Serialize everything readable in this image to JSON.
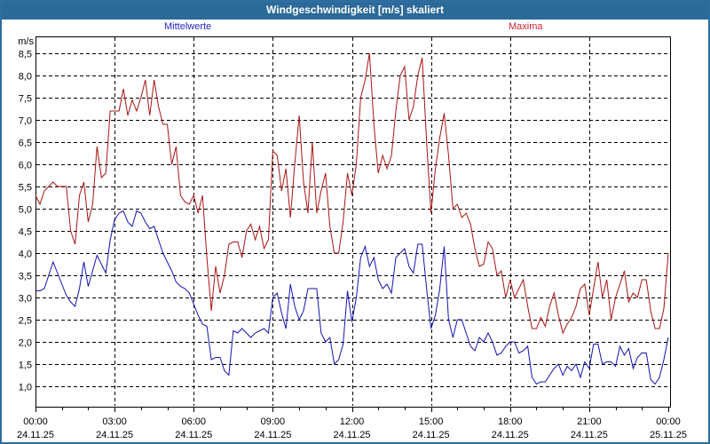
{
  "window": {
    "title": "Windgeschwindigkeit [m/s] skaliert"
  },
  "legend": {
    "mean_label": "Mittelwerte",
    "max_label": "Maxima"
  },
  "colors": {
    "titlebar_bg": "#2d6e9e",
    "titlebar_text": "#ffffff",
    "frame_border": "#2d6e9e",
    "legend_mean_text": "#2424cc",
    "legend_max_text": "#cc2233",
    "line_mean": "#1414b2",
    "line_max": "#a81414",
    "grid": "#000000",
    "plot_bg": "#ffffff"
  },
  "chart_data": {
    "type": "line",
    "title": "Windgeschwindigkeit [m/s] skaliert",
    "ylabel": "m/s",
    "ylim": [
      1.0,
      8.5
    ],
    "y_tick_step": 0.5,
    "y_tick_labels": [
      "8,5",
      "8,0",
      "7,5",
      "7,0",
      "6,5",
      "6,0",
      "5,5",
      "5,0",
      "4,5",
      "4,0",
      "3,5",
      "3,0",
      "2,5",
      "2,0",
      "1,5",
      "1,0"
    ],
    "grid": "dashed",
    "x_start_hour": 0,
    "x_end_hour": 24,
    "x_major_tick_hours": 3,
    "x_minor_tick_hours": 1,
    "interval_minutes": 10,
    "x_tick_labels": [
      {
        "time": "00:00",
        "date": "24.11.25"
      },
      {
        "time": "03:00",
        "date": "24.11.25"
      },
      {
        "time": "06:00",
        "date": "24.11.25"
      },
      {
        "time": "09:00",
        "date": "24.11.25"
      },
      {
        "time": "12:00",
        "date": "24.11.25"
      },
      {
        "time": "15:00",
        "date": "24.11.25"
      },
      {
        "time": "18:00",
        "date": "24.11.25"
      },
      {
        "time": "21:00",
        "date": "24.11.25"
      },
      {
        "time": "00:00",
        "date": "25.11.25"
      }
    ],
    "series": [
      {
        "name": "Mittelwerte",
        "color": "#1414b2",
        "values": [
          3.15,
          3.15,
          3.2,
          3.5,
          3.8,
          3.55,
          3.3,
          3.05,
          2.9,
          2.8,
          3.2,
          3.8,
          3.25,
          3.6,
          3.95,
          3.75,
          3.55,
          4.3,
          4.75,
          4.9,
          4.95,
          4.7,
          4.6,
          4.95,
          4.9,
          4.7,
          4.55,
          4.6,
          4.3,
          4.0,
          3.8,
          3.6,
          3.35,
          3.25,
          3.2,
          3.1,
          2.85,
          2.6,
          2.4,
          2.35,
          1.6,
          1.65,
          1.65,
          1.35,
          1.25,
          2.25,
          2.2,
          2.3,
          2.2,
          2.1,
          2.2,
          2.25,
          2.3,
          2.2,
          3.0,
          3.1,
          2.65,
          2.3,
          3.3,
          2.8,
          2.5,
          2.7,
          3.2,
          3.2,
          3.2,
          2.2,
          2.0,
          2.1,
          1.5,
          1.6,
          1.95,
          3.15,
          2.45,
          3.0,
          3.9,
          4.15,
          3.7,
          3.9,
          3.4,
          3.2,
          3.3,
          3.1,
          3.9,
          4.0,
          4.1,
          3.7,
          3.55,
          4.2,
          4.2,
          3.2,
          2.3,
          2.6,
          3.2,
          4.15,
          2.5,
          2.1,
          2.5,
          2.5,
          2.2,
          1.9,
          1.8,
          2.1,
          2.0,
          2.2,
          2.0,
          1.7,
          1.75,
          1.9,
          2.0,
          2.0,
          1.75,
          1.8,
          1.9,
          1.2,
          1.05,
          1.1,
          1.1,
          1.25,
          1.4,
          1.5,
          1.25,
          1.45,
          1.35,
          1.5,
          1.2,
          1.55,
          1.4,
          1.95,
          1.95,
          1.5,
          1.55,
          1.55,
          1.45,
          1.9,
          1.7,
          1.85,
          1.4,
          1.65,
          1.75,
          1.75,
          1.15,
          1.05,
          1.2,
          1.6,
          2.1
        ]
      },
      {
        "name": "Maxima",
        "color": "#a81414",
        "values": [
          5.3,
          5.1,
          5.4,
          5.5,
          5.6,
          5.5,
          5.5,
          5.5,
          4.5,
          4.2,
          5.3,
          5.6,
          4.7,
          5.1,
          6.4,
          5.7,
          5.8,
          7.2,
          7.2,
          7.2,
          7.7,
          7.1,
          7.45,
          7.2,
          7.5,
          7.9,
          7.1,
          7.9,
          7.3,
          6.9,
          6.9,
          6.0,
          6.4,
          5.3,
          5.15,
          5.1,
          5.3,
          4.9,
          5.3,
          3.9,
          2.7,
          3.7,
          3.1,
          3.5,
          4.2,
          4.25,
          4.25,
          3.9,
          4.5,
          4.65,
          4.3,
          4.6,
          4.1,
          4.3,
          6.3,
          6.2,
          5.4,
          5.9,
          4.8,
          6.0,
          7.1,
          5.6,
          4.9,
          6.5,
          4.9,
          5.4,
          5.8,
          4.6,
          4.0,
          4.0,
          4.7,
          5.8,
          5.3,
          6.0,
          7.5,
          7.9,
          8.5,
          6.9,
          5.8,
          6.2,
          5.9,
          6.2,
          7.2,
          8.0,
          8.2,
          7.0,
          7.3,
          8.0,
          8.4,
          6.5,
          4.9,
          5.9,
          6.6,
          7.15,
          6.2,
          5.0,
          5.1,
          4.8,
          4.9,
          4.65,
          4.1,
          3.7,
          3.75,
          4.25,
          4.1,
          3.5,
          3.6,
          3.0,
          3.4,
          3.0,
          3.2,
          3.4,
          2.8,
          2.3,
          2.3,
          2.55,
          2.35,
          2.8,
          3.1,
          2.6,
          2.2,
          2.4,
          2.55,
          2.8,
          3.2,
          3.3,
          2.6,
          3.2,
          3.8,
          3.0,
          3.4,
          2.5,
          3.0,
          3.3,
          3.6,
          2.9,
          3.1,
          3.0,
          3.4,
          3.4,
          2.7,
          2.3,
          2.3,
          2.75,
          4.0
        ]
      }
    ]
  }
}
